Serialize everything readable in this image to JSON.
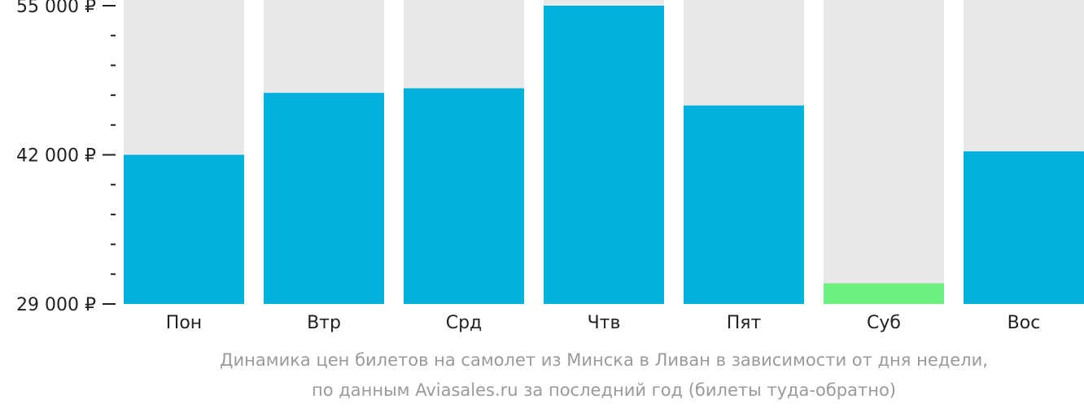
{
  "chart_data": {
    "type": "bar",
    "categories": [
      "Пон",
      "Втр",
      "Срд",
      "Чтв",
      "Пят",
      "Суб",
      "Вос"
    ],
    "values": [
      42000,
      47400,
      47800,
      55000,
      46300,
      30800,
      42300
    ],
    "highlight_index": 5,
    "ylim": [
      29000,
      55000
    ],
    "yticks": [
      29000,
      42000,
      55000
    ],
    "ytick_labels": [
      "29 000 ₽",
      "42 000 ₽",
      "55 000 ₽"
    ],
    "minor_ticks_between": 4,
    "colors": {
      "bar": "#00b0dd",
      "highlight": "#6cf080",
      "background_bar": "#e8e8e8",
      "axis": "#222222"
    },
    "caption": [
      "Динамика цен билетов на самолет из Минска в Ливан в зависимости от дня недели,",
      "по данным Aviasales.ru за последний год (билеты туда-обратно)"
    ]
  }
}
